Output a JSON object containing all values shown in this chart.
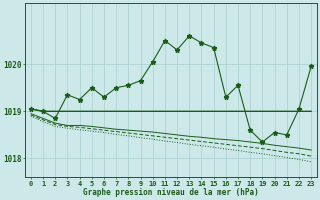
{
  "title": "Graphe pression niveau de la mer (hPa)",
  "bg_color": "#cce8e8",
  "line_color": "#1a5c1a",
  "grid_color": "#aacfcf",
  "ylim": [
    1017.6,
    1021.3
  ],
  "xlim": [
    -0.5,
    23.5
  ],
  "yticks": [
    1018,
    1019,
    1020
  ],
  "xticks": [
    0,
    1,
    2,
    3,
    4,
    5,
    6,
    7,
    8,
    9,
    10,
    11,
    12,
    13,
    14,
    15,
    16,
    17,
    18,
    19,
    20,
    21,
    22,
    23
  ],
  "series_spiky": [
    1019.05,
    1019.0,
    1018.85,
    1019.35,
    1019.25,
    1019.5,
    1019.3,
    1019.5,
    1019.55,
    1019.65,
    1020.05,
    1020.5,
    1020.3,
    1020.6,
    1020.45,
    1020.35,
    1019.3,
    1019.55,
    1018.6,
    1018.35,
    1018.55,
    1018.5,
    1019.05,
    1019.95
  ],
  "series_flat": [
    1019.05,
    1019.0,
    1019.0,
    1019.0,
    1019.0,
    1019.0,
    1019.0,
    1019.0,
    1019.0,
    1019.0,
    1019.0,
    1019.0,
    1019.0,
    1019.0,
    1019.0,
    1019.0,
    1019.0,
    1019.0,
    1019.0,
    1019.0,
    1019.0,
    1019.0,
    1019.0,
    1019.0
  ],
  "series_diag1": [
    1018.95,
    1018.85,
    1018.75,
    1018.7,
    1018.7,
    1018.68,
    1018.65,
    1018.62,
    1018.6,
    1018.58,
    1018.56,
    1018.53,
    1018.5,
    1018.47,
    1018.45,
    1018.42,
    1018.4,
    1018.38,
    1018.35,
    1018.32,
    1018.28,
    1018.25,
    1018.22,
    1018.18
  ],
  "series_diag2": [
    1018.92,
    1018.82,
    1018.72,
    1018.68,
    1018.66,
    1018.63,
    1018.6,
    1018.57,
    1018.54,
    1018.51,
    1018.48,
    1018.45,
    1018.42,
    1018.39,
    1018.36,
    1018.33,
    1018.3,
    1018.27,
    1018.24,
    1018.21,
    1018.17,
    1018.13,
    1018.1,
    1018.05
  ],
  "series_diag3": [
    1018.9,
    1018.78,
    1018.68,
    1018.64,
    1018.61,
    1018.58,
    1018.55,
    1018.51,
    1018.48,
    1018.44,
    1018.41,
    1018.37,
    1018.34,
    1018.3,
    1018.27,
    1018.24,
    1018.2,
    1018.17,
    1018.13,
    1018.1,
    1018.06,
    1018.02,
    1017.98,
    1017.93
  ]
}
